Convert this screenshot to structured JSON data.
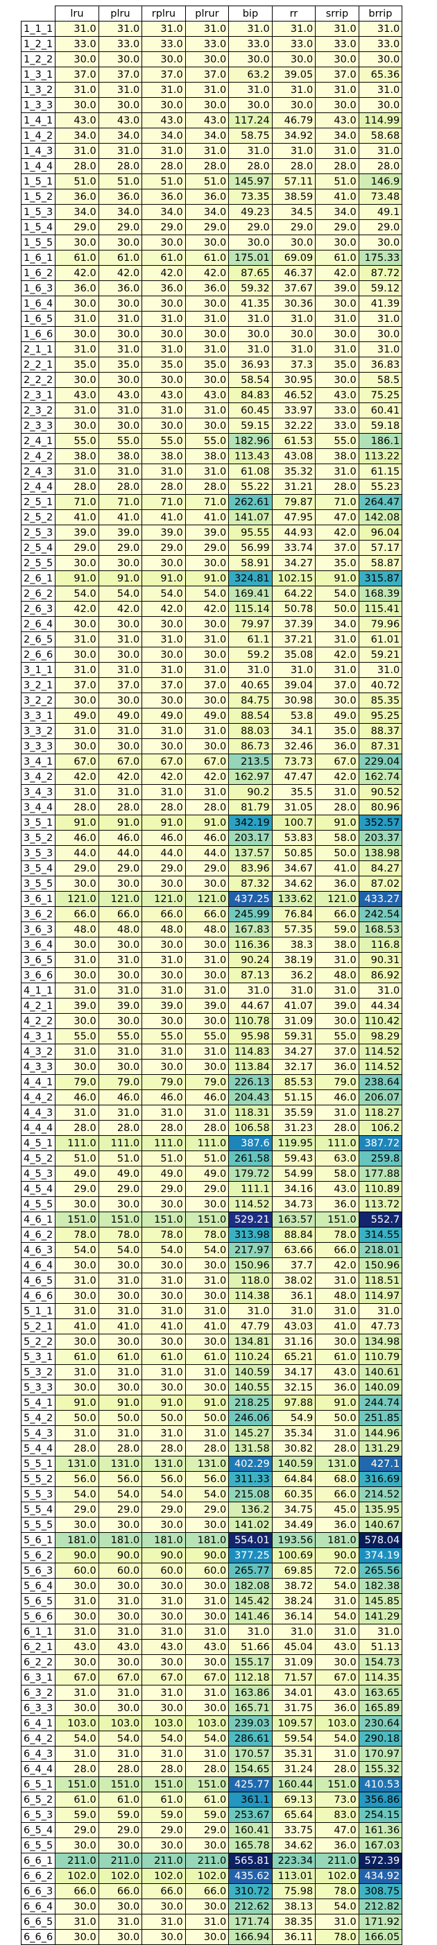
{
  "chart_data": {
    "type": "table",
    "columns": [
      "lru",
      "plru",
      "rplru",
      "plrur",
      "bip",
      "rr",
      "srrip",
      "brrip"
    ],
    "rows": [
      [
        "1_1_1",
        31.0,
        31.0,
        31.0,
        31.0,
        31.0,
        31.0,
        31.0,
        31.0
      ],
      [
        "1_2_1",
        33.0,
        33.0,
        33.0,
        33.0,
        33.0,
        33.0,
        33.0,
        33.0
      ],
      [
        "1_2_2",
        30.0,
        30.0,
        30.0,
        30.0,
        30.0,
        30.0,
        30.0,
        30.0
      ],
      [
        "1_3_1",
        37.0,
        37.0,
        37.0,
        37.0,
        63.2,
        39.05,
        37.0,
        65.36
      ],
      [
        "1_3_2",
        31.0,
        31.0,
        31.0,
        31.0,
        31.0,
        31.0,
        31.0,
        31.0
      ],
      [
        "1_3_3",
        30.0,
        30.0,
        30.0,
        30.0,
        30.0,
        30.0,
        30.0,
        30.0
      ],
      [
        "1_4_1",
        43.0,
        43.0,
        43.0,
        43.0,
        117.24,
        46.79,
        43.0,
        114.99
      ],
      [
        "1_4_2",
        34.0,
        34.0,
        34.0,
        34.0,
        58.75,
        34.92,
        34.0,
        58.68
      ],
      [
        "1_4_3",
        31.0,
        31.0,
        31.0,
        31.0,
        31.0,
        31.0,
        31.0,
        31.0
      ],
      [
        "1_4_4",
        28.0,
        28.0,
        28.0,
        28.0,
        28.0,
        28.0,
        28.0,
        28.0
      ],
      [
        "1_5_1",
        51.0,
        51.0,
        51.0,
        51.0,
        145.97,
        57.11,
        51.0,
        146.9
      ],
      [
        "1_5_2",
        36.0,
        36.0,
        36.0,
        36.0,
        73.35,
        38.59,
        41.0,
        73.48
      ],
      [
        "1_5_3",
        34.0,
        34.0,
        34.0,
        34.0,
        49.23,
        34.5,
        34.0,
        49.1
      ],
      [
        "1_5_4",
        29.0,
        29.0,
        29.0,
        29.0,
        29.0,
        29.0,
        29.0,
        29.0
      ],
      [
        "1_5_5",
        30.0,
        30.0,
        30.0,
        30.0,
        30.0,
        30.0,
        30.0,
        30.0
      ],
      [
        "1_6_1",
        61.0,
        61.0,
        61.0,
        61.0,
        175.01,
        69.09,
        61.0,
        175.33
      ],
      [
        "1_6_2",
        42.0,
        42.0,
        42.0,
        42.0,
        87.65,
        46.37,
        42.0,
        87.72
      ],
      [
        "1_6_3",
        36.0,
        36.0,
        36.0,
        36.0,
        59.32,
        37.67,
        39.0,
        59.12
      ],
      [
        "1_6_4",
        30.0,
        30.0,
        30.0,
        30.0,
        41.35,
        30.36,
        30.0,
        41.39
      ],
      [
        "1_6_5",
        31.0,
        31.0,
        31.0,
        31.0,
        31.0,
        31.0,
        31.0,
        31.0
      ],
      [
        "1_6_6",
        30.0,
        30.0,
        30.0,
        30.0,
        30.0,
        30.0,
        30.0,
        30.0
      ],
      [
        "2_1_1",
        31.0,
        31.0,
        31.0,
        31.0,
        31.0,
        31.0,
        31.0,
        31.0
      ],
      [
        "2_2_1",
        35.0,
        35.0,
        35.0,
        35.0,
        36.93,
        37.3,
        35.0,
        36.83
      ],
      [
        "2_2_2",
        30.0,
        30.0,
        30.0,
        30.0,
        58.54,
        30.95,
        30.0,
        58.5
      ],
      [
        "2_3_1",
        43.0,
        43.0,
        43.0,
        43.0,
        84.83,
        46.52,
        43.0,
        75.25
      ],
      [
        "2_3_2",
        31.0,
        31.0,
        31.0,
        31.0,
        60.45,
        33.97,
        33.0,
        60.41
      ],
      [
        "2_3_3",
        30.0,
        30.0,
        30.0,
        30.0,
        59.15,
        32.22,
        33.0,
        59.18
      ],
      [
        "2_4_1",
        55.0,
        55.0,
        55.0,
        55.0,
        182.96,
        61.53,
        55.0,
        186.1
      ],
      [
        "2_4_2",
        38.0,
        38.0,
        38.0,
        38.0,
        113.43,
        43.08,
        38.0,
        113.22
      ],
      [
        "2_4_3",
        31.0,
        31.0,
        31.0,
        31.0,
        61.08,
        35.32,
        31.0,
        61.15
      ],
      [
        "2_4_4",
        28.0,
        28.0,
        28.0,
        28.0,
        55.22,
        31.21,
        28.0,
        55.23
      ],
      [
        "2_5_1",
        71.0,
        71.0,
        71.0,
        71.0,
        262.61,
        79.87,
        71.0,
        264.47
      ],
      [
        "2_5_2",
        41.0,
        41.0,
        41.0,
        41.0,
        141.07,
        47.95,
        47.0,
        142.08
      ],
      [
        "2_5_3",
        39.0,
        39.0,
        39.0,
        39.0,
        95.55,
        44.93,
        42.0,
        96.04
      ],
      [
        "2_5_4",
        29.0,
        29.0,
        29.0,
        29.0,
        56.99,
        33.74,
        37.0,
        57.17
      ],
      [
        "2_5_5",
        30.0,
        30.0,
        30.0,
        30.0,
        58.91,
        34.27,
        35.0,
        58.87
      ],
      [
        "2_6_1",
        91.0,
        91.0,
        91.0,
        91.0,
        324.81,
        102.15,
        91.0,
        315.87
      ],
      [
        "2_6_2",
        54.0,
        54.0,
        54.0,
        54.0,
        169.41,
        64.22,
        54.0,
        168.39
      ],
      [
        "2_6_3",
        42.0,
        42.0,
        42.0,
        42.0,
        115.14,
        50.78,
        50.0,
        115.41
      ],
      [
        "2_6_4",
        30.0,
        30.0,
        30.0,
        30.0,
        79.97,
        37.39,
        34.0,
        79.96
      ],
      [
        "2_6_5",
        31.0,
        31.0,
        31.0,
        31.0,
        61.1,
        37.21,
        31.0,
        61.01
      ],
      [
        "2_6_6",
        30.0,
        30.0,
        30.0,
        30.0,
        59.2,
        35.08,
        42.0,
        59.21
      ],
      [
        "3_1_1",
        31.0,
        31.0,
        31.0,
        31.0,
        31.0,
        31.0,
        31.0,
        31.0
      ],
      [
        "3_2_1",
        37.0,
        37.0,
        37.0,
        37.0,
        40.65,
        39.04,
        37.0,
        40.72
      ],
      [
        "3_2_2",
        30.0,
        30.0,
        30.0,
        30.0,
        84.75,
        30.98,
        30.0,
        85.35
      ],
      [
        "3_3_1",
        49.0,
        49.0,
        49.0,
        49.0,
        88.54,
        53.8,
        49.0,
        95.25
      ],
      [
        "3_3_2",
        31.0,
        31.0,
        31.0,
        31.0,
        88.03,
        34.1,
        35.0,
        88.37
      ],
      [
        "3_3_3",
        30.0,
        30.0,
        30.0,
        30.0,
        86.73,
        32.46,
        36.0,
        87.31
      ],
      [
        "3_4_1",
        67.0,
        67.0,
        67.0,
        67.0,
        213.5,
        73.73,
        67.0,
        229.04
      ],
      [
        "3_4_2",
        42.0,
        42.0,
        42.0,
        42.0,
        162.97,
        47.47,
        42.0,
        162.74
      ],
      [
        "3_4_3",
        31.0,
        31.0,
        31.0,
        31.0,
        90.2,
        35.5,
        31.0,
        90.52
      ],
      [
        "3_4_4",
        28.0,
        28.0,
        28.0,
        28.0,
        81.79,
        31.05,
        28.0,
        80.96
      ],
      [
        "3_5_1",
        91.0,
        91.0,
        91.0,
        91.0,
        342.19,
        100.7,
        91.0,
        352.57
      ],
      [
        "3_5_2",
        46.0,
        46.0,
        46.0,
        46.0,
        203.17,
        53.83,
        58.0,
        203.37
      ],
      [
        "3_5_3",
        44.0,
        44.0,
        44.0,
        44.0,
        137.57,
        50.85,
        50.0,
        138.98
      ],
      [
        "3_5_4",
        29.0,
        29.0,
        29.0,
        29.0,
        83.96,
        34.67,
        41.0,
        84.27
      ],
      [
        "3_5_5",
        30.0,
        30.0,
        30.0,
        30.0,
        87.32,
        34.62,
        36.0,
        87.02
      ],
      [
        "3_6_1",
        121.0,
        121.0,
        121.0,
        121.0,
        437.25,
        133.62,
        121.0,
        433.27
      ],
      [
        "3_6_2",
        66.0,
        66.0,
        66.0,
        66.0,
        245.99,
        76.84,
        66.0,
        242.54
      ],
      [
        "3_6_3",
        48.0,
        48.0,
        48.0,
        48.0,
        167.83,
        57.35,
        59.0,
        168.53
      ],
      [
        "3_6_4",
        30.0,
        30.0,
        30.0,
        30.0,
        116.36,
        38.3,
        38.0,
        116.8
      ],
      [
        "3_6_5",
        31.0,
        31.0,
        31.0,
        31.0,
        90.24,
        38.19,
        31.0,
        90.31
      ],
      [
        "3_6_6",
        30.0,
        30.0,
        30.0,
        30.0,
        87.13,
        36.2,
        48.0,
        86.92
      ],
      [
        "4_1_1",
        31.0,
        31.0,
        31.0,
        31.0,
        31.0,
        31.0,
        31.0,
        31.0
      ],
      [
        "4_2_1",
        39.0,
        39.0,
        39.0,
        39.0,
        44.67,
        41.07,
        39.0,
        44.34
      ],
      [
        "4_2_2",
        30.0,
        30.0,
        30.0,
        30.0,
        110.78,
        31.09,
        30.0,
        110.42
      ],
      [
        "4_3_1",
        55.0,
        55.0,
        55.0,
        55.0,
        95.98,
        59.31,
        55.0,
        98.29
      ],
      [
        "4_3_2",
        31.0,
        31.0,
        31.0,
        31.0,
        114.83,
        34.27,
        37.0,
        114.52
      ],
      [
        "4_3_3",
        30.0,
        30.0,
        30.0,
        30.0,
        113.84,
        32.17,
        36.0,
        114.52
      ],
      [
        "4_4_1",
        79.0,
        79.0,
        79.0,
        79.0,
        226.13,
        85.53,
        79.0,
        238.64
      ],
      [
        "4_4_2",
        46.0,
        46.0,
        46.0,
        46.0,
        204.43,
        51.15,
        46.0,
        206.07
      ],
      [
        "4_4_3",
        31.0,
        31.0,
        31.0,
        31.0,
        118.31,
        35.59,
        31.0,
        118.27
      ],
      [
        "4_4_4",
        28.0,
        28.0,
        28.0,
        28.0,
        106.58,
        31.23,
        28.0,
        106.2
      ],
      [
        "4_5_1",
        111.0,
        111.0,
        111.0,
        111.0,
        387.6,
        119.95,
        111.0,
        387.72
      ],
      [
        "4_5_2",
        51.0,
        51.0,
        51.0,
        51.0,
        261.58,
        59.43,
        63.0,
        259.8
      ],
      [
        "4_5_3",
        49.0,
        49.0,
        49.0,
        49.0,
        179.72,
        54.99,
        58.0,
        177.88
      ],
      [
        "4_5_4",
        29.0,
        29.0,
        29.0,
        29.0,
        111.1,
        34.16,
        43.0,
        110.89
      ],
      [
        "4_5_5",
        30.0,
        30.0,
        30.0,
        30.0,
        114.52,
        34.73,
        36.0,
        113.72
      ],
      [
        "4_6_1",
        151.0,
        151.0,
        151.0,
        151.0,
        529.21,
        163.57,
        151.0,
        552.7
      ],
      [
        "4_6_2",
        78.0,
        78.0,
        78.0,
        78.0,
        313.98,
        88.84,
        78.0,
        314.55
      ],
      [
        "4_6_3",
        54.0,
        54.0,
        54.0,
        54.0,
        217.97,
        63.66,
        66.0,
        218.01
      ],
      [
        "4_6_4",
        30.0,
        30.0,
        30.0,
        30.0,
        150.96,
        37.7,
        42.0,
        150.96
      ],
      [
        "4_6_5",
        31.0,
        31.0,
        31.0,
        31.0,
        118.0,
        38.02,
        31.0,
        118.51
      ],
      [
        "4_6_6",
        30.0,
        30.0,
        30.0,
        30.0,
        114.38,
        36.1,
        48.0,
        114.97
      ],
      [
        "5_1_1",
        31.0,
        31.0,
        31.0,
        31.0,
        31.0,
        31.0,
        31.0,
        31.0
      ],
      [
        "5_2_1",
        41.0,
        41.0,
        41.0,
        41.0,
        47.79,
        43.03,
        41.0,
        47.73
      ],
      [
        "5_2_2",
        30.0,
        30.0,
        30.0,
        30.0,
        134.81,
        31.16,
        30.0,
        134.98
      ],
      [
        "5_3_1",
        61.0,
        61.0,
        61.0,
        61.0,
        110.24,
        65.21,
        61.0,
        110.79
      ],
      [
        "5_3_2",
        31.0,
        31.0,
        31.0,
        31.0,
        140.59,
        34.17,
        43.0,
        140.61
      ],
      [
        "5_3_3",
        30.0,
        30.0,
        30.0,
        30.0,
        140.55,
        32.15,
        36.0,
        140.09
      ],
      [
        "5_4_1",
        91.0,
        91.0,
        91.0,
        91.0,
        218.25,
        97.88,
        91.0,
        244.74
      ],
      [
        "5_4_2",
        50.0,
        50.0,
        50.0,
        50.0,
        246.06,
        54.9,
        50.0,
        251.85
      ],
      [
        "5_4_3",
        31.0,
        31.0,
        31.0,
        31.0,
        145.27,
        35.34,
        31.0,
        144.96
      ],
      [
        "5_4_4",
        28.0,
        28.0,
        28.0,
        28.0,
        131.58,
        30.82,
        28.0,
        131.29
      ],
      [
        "5_5_1",
        131.0,
        131.0,
        131.0,
        131.0,
        402.29,
        140.59,
        131.0,
        427.1
      ],
      [
        "5_5_2",
        56.0,
        56.0,
        56.0,
        56.0,
        311.33,
        64.84,
        68.0,
        316.69
      ],
      [
        "5_5_3",
        54.0,
        54.0,
        54.0,
        54.0,
        215.08,
        60.35,
        66.0,
        214.52
      ],
      [
        "5_5_4",
        29.0,
        29.0,
        29.0,
        29.0,
        136.2,
        34.75,
        45.0,
        135.95
      ],
      [
        "5_5_5",
        30.0,
        30.0,
        30.0,
        30.0,
        141.02,
        34.49,
        36.0,
        140.67
      ],
      [
        "5_6_1",
        181.0,
        181.0,
        181.0,
        181.0,
        554.01,
        193.56,
        181.0,
        578.04
      ],
      [
        "5_6_2",
        90.0,
        90.0,
        90.0,
        90.0,
        377.25,
        100.69,
        90.0,
        374.19
      ],
      [
        "5_6_3",
        60.0,
        60.0,
        60.0,
        60.0,
        265.77,
        69.85,
        72.0,
        265.56
      ],
      [
        "5_6_4",
        30.0,
        30.0,
        30.0,
        30.0,
        182.08,
        38.72,
        54.0,
        182.38
      ],
      [
        "5_6_5",
        31.0,
        31.0,
        31.0,
        31.0,
        145.42,
        38.24,
        31.0,
        145.85
      ],
      [
        "5_6_6",
        30.0,
        30.0,
        30.0,
        30.0,
        141.46,
        36.14,
        54.0,
        141.29
      ],
      [
        "6_1_1",
        31.0,
        31.0,
        31.0,
        31.0,
        31.0,
        31.0,
        31.0,
        31.0
      ],
      [
        "6_2_1",
        43.0,
        43.0,
        43.0,
        43.0,
        51.66,
        45.04,
        43.0,
        51.13
      ],
      [
        "6_2_2",
        30.0,
        30.0,
        30.0,
        30.0,
        155.17,
        31.09,
        30.0,
        154.73
      ],
      [
        "6_3_1",
        67.0,
        67.0,
        67.0,
        67.0,
        112.18,
        71.57,
        67.0,
        114.35
      ],
      [
        "6_3_2",
        31.0,
        31.0,
        31.0,
        31.0,
        163.86,
        34.01,
        43.0,
        163.65
      ],
      [
        "6_3_3",
        30.0,
        30.0,
        30.0,
        30.0,
        165.71,
        31.75,
        36.0,
        165.89
      ],
      [
        "6_4_1",
        103.0,
        103.0,
        103.0,
        103.0,
        239.03,
        109.57,
        103.0,
        230.64
      ],
      [
        "6_4_2",
        54.0,
        54.0,
        54.0,
        54.0,
        286.61,
        59.54,
        54.0,
        290.18
      ],
      [
        "6_4_3",
        31.0,
        31.0,
        31.0,
        31.0,
        170.57,
        35.31,
        31.0,
        170.97
      ],
      [
        "6_4_4",
        28.0,
        28.0,
        28.0,
        28.0,
        154.65,
        31.24,
        28.0,
        155.32
      ],
      [
        "6_5_1",
        151.0,
        151.0,
        151.0,
        151.0,
        425.77,
        160.44,
        151.0,
        410.53
      ],
      [
        "6_5_2",
        61.0,
        61.0,
        61.0,
        61.0,
        361.1,
        69.13,
        73.0,
        356.86
      ],
      [
        "6_5_3",
        59.0,
        59.0,
        59.0,
        59.0,
        253.67,
        65.64,
        83.0,
        254.15
      ],
      [
        "6_5_4",
        29.0,
        29.0,
        29.0,
        29.0,
        160.41,
        33.75,
        47.0,
        161.36
      ],
      [
        "6_5_5",
        30.0,
        30.0,
        30.0,
        30.0,
        165.78,
        34.62,
        36.0,
        167.03
      ],
      [
        "6_6_1",
        211.0,
        211.0,
        211.0,
        211.0,
        565.81,
        223.34,
        211.0,
        572.39
      ],
      [
        "6_6_2",
        102.0,
        102.0,
        102.0,
        102.0,
        435.62,
        113.01,
        102.0,
        434.92
      ],
      [
        "6_6_3",
        66.0,
        66.0,
        66.0,
        66.0,
        310.72,
        75.98,
        78.0,
        308.75
      ],
      [
        "6_6_4",
        30.0,
        30.0,
        30.0,
        30.0,
        212.62,
        38.13,
        54.0,
        212.82
      ],
      [
        "6_6_5",
        31.0,
        31.0,
        31.0,
        31.0,
        171.74,
        38.35,
        31.0,
        171.92
      ],
      [
        "6_6_6",
        30.0,
        30.0,
        30.0,
        30.0,
        166.94,
        36.11,
        78.0,
        166.05
      ]
    ],
    "color_scale": {
      "min": 28.0,
      "max": 578.04,
      "stops": [
        "#ffffd9",
        "#edf8b1",
        "#c7e9b4",
        "#7fcdbb",
        "#41b6c4",
        "#1d91c0",
        "#225ea8",
        "#253494",
        "#081d58"
      ]
    },
    "grid": true,
    "legend": "none"
  }
}
